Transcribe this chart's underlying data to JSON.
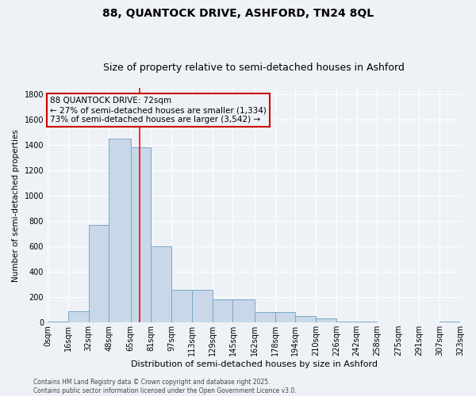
{
  "title_line1": "88, QUANTOCK DRIVE, ASHFORD, TN24 8QL",
  "title_line2": "Size of property relative to semi-detached houses in Ashford",
  "xlabel": "Distribution of semi-detached houses by size in Ashford",
  "ylabel": "Number of semi-detached properties",
  "bar_color": "#c8d8e8",
  "bar_edge_color": "#7aa8c8",
  "background_color": "#eef2f7",
  "grid_color": "#ffffff",
  "annotation_box_color": "#cc0000",
  "annotation_text": "88 QUANTOCK DRIVE: 72sqm\n← 27% of semi-detached houses are smaller (1,334)\n73% of semi-detached houses are larger (3,542) →",
  "property_line_x": 72,
  "bins": [
    0,
    16,
    32,
    48,
    65,
    81,
    97,
    113,
    129,
    145,
    162,
    178,
    194,
    210,
    226,
    242,
    258,
    275,
    291,
    307,
    323
  ],
  "bin_labels": [
    "0sqm",
    "16sqm",
    "32sqm",
    "48sqm",
    "65sqm",
    "81sqm",
    "97sqm",
    "113sqm",
    "129sqm",
    "145sqm",
    "162sqm",
    "178sqm",
    "194sqm",
    "210sqm",
    "226sqm",
    "242sqm",
    "258sqm",
    "275sqm",
    "291sqm",
    "307sqm",
    "323sqm"
  ],
  "bar_heights": [
    5,
    90,
    770,
    1450,
    1380,
    600,
    260,
    260,
    185,
    185,
    80,
    80,
    50,
    30,
    10,
    10,
    0,
    0,
    0,
    5
  ],
  "ylim": [
    0,
    1850
  ],
  "yticks": [
    0,
    200,
    400,
    600,
    800,
    1000,
    1200,
    1400,
    1600,
    1800
  ],
  "footnote": "Contains HM Land Registry data © Crown copyright and database right 2025.\nContains public sector information licensed under the Open Government Licence v3.0.",
  "title_fontsize": 10,
  "subtitle_fontsize": 9,
  "annot_fontsize": 7.5,
  "ylabel_fontsize": 7.5,
  "xlabel_fontsize": 8,
  "tick_fontsize": 7,
  "footnote_fontsize": 5.5
}
